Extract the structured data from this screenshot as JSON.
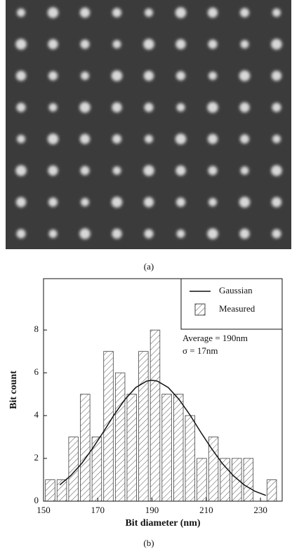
{
  "panel_a_caption": "(a)",
  "chart_data": {
    "type": "histogram",
    "caption": "(b)",
    "x_label": "Bit diameter (nm)",
    "y_label": "Bit count",
    "bins": [
      150.3,
      154.6,
      158.9,
      163.2,
      167.5,
      171.8,
      176.1,
      180.4,
      184.7,
      189.0,
      193.3,
      197.6,
      201.9,
      206.2,
      210.5,
      214.8,
      219.1,
      223.4,
      227.7,
      232.0,
      236.3
    ],
    "series": [
      {
        "name": "Gaussian",
        "type": "line",
        "color": "#111111",
        "x": [
          156,
          160,
          164,
          168,
          172,
          176,
          180,
          184,
          188,
          190,
          192,
          196,
          200,
          204,
          208,
          212,
          216,
          220,
          224,
          228,
          232
        ],
        "values": [
          0.76,
          1.19,
          1.75,
          2.45,
          3.22,
          4.03,
          4.75,
          5.31,
          5.61,
          5.65,
          5.61,
          5.31,
          4.75,
          4.03,
          3.22,
          2.45,
          1.75,
          1.19,
          0.76,
          0.46,
          0.27
        ]
      },
      {
        "name": "Measured",
        "type": "histogram",
        "color": "#444444",
        "values": [
          1,
          1,
          3,
          5,
          3,
          7,
          6,
          5,
          7,
          8,
          5,
          5,
          4,
          2,
          3,
          2,
          2,
          2,
          0,
          1
        ]
      }
    ],
    "annotations": [
      "Average = 190nm",
      "σ = 17nm"
    ],
    "xlim": [
      150,
      238
    ],
    "xticks": [
      150,
      170,
      190,
      210,
      230
    ],
    "ylim": [
      0,
      10.4
    ],
    "yticks": [
      0,
      2,
      4,
      6,
      8
    ],
    "grid": false,
    "legend": "upper right"
  }
}
